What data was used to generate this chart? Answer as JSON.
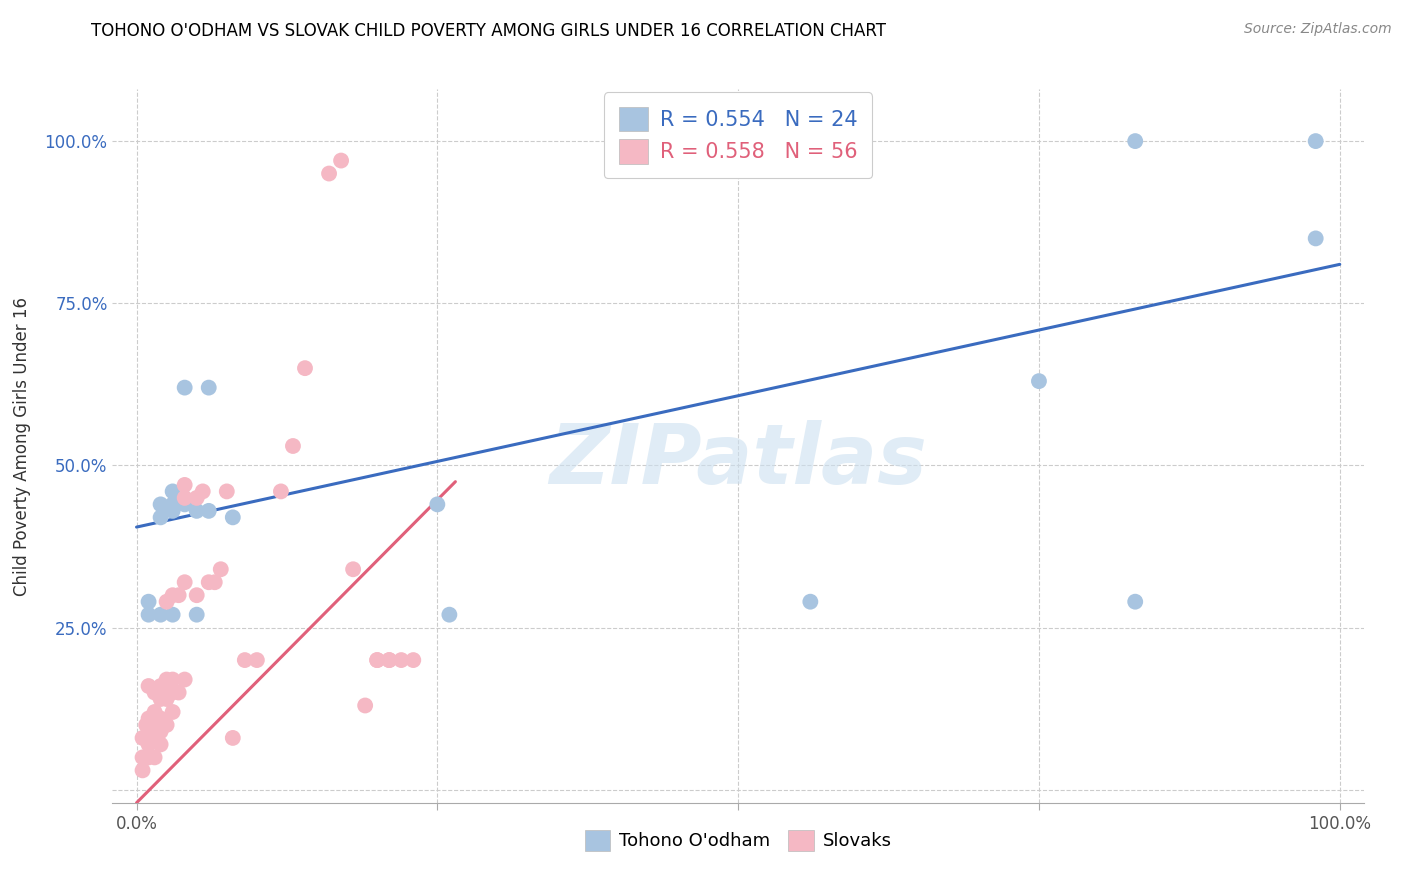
{
  "title": "TOHONO O'ODHAM VS SLOVAK CHILD POVERTY AMONG GIRLS UNDER 16 CORRELATION CHART",
  "source": "Source: ZipAtlas.com",
  "ylabel": "Child Poverty Among Girls Under 16",
  "xlim": [
    -0.02,
    1.02
  ],
  "ylim": [
    -0.02,
    1.08
  ],
  "xticks": [
    0.0,
    1.0
  ],
  "yticks": [
    0.25,
    0.5,
    0.75,
    1.0
  ],
  "xticklabels": [
    "0.0%",
    "100.0%"
  ],
  "yticklabels": [
    "25.0%",
    "50.0%",
    "75.0%",
    "100.0%"
  ],
  "blue_R": 0.554,
  "blue_N": 24,
  "pink_R": 0.558,
  "pink_N": 56,
  "blue_color": "#a8c4e0",
  "pink_color": "#f5b8c4",
  "blue_line_color": "#3a6bbf",
  "pink_line_color": "#e0607a",
  "watermark": "ZIPatlas",
  "legend_blue_label": "Tohono O'odham",
  "legend_pink_label": "Slovaks",
  "blue_line_x0": 0.0,
  "blue_line_y0": 0.405,
  "blue_line_x1": 1.0,
  "blue_line_y1": 0.81,
  "pink_line_x0": 0.0,
  "pink_line_y0": -0.02,
  "pink_line_x1": 0.265,
  "pink_line_y1": 0.475,
  "blue_scatter_x": [
    0.01,
    0.01,
    0.02,
    0.02,
    0.02,
    0.03,
    0.03,
    0.03,
    0.03,
    0.04,
    0.04,
    0.05,
    0.05,
    0.06,
    0.06,
    0.08,
    0.25,
    0.26,
    0.56,
    0.75,
    0.83,
    0.83,
    0.98,
    0.98
  ],
  "blue_scatter_y": [
    0.27,
    0.29,
    0.42,
    0.44,
    0.27,
    0.44,
    0.46,
    0.43,
    0.27,
    0.44,
    0.62,
    0.43,
    0.27,
    0.43,
    0.62,
    0.42,
    0.44,
    0.27,
    0.29,
    0.63,
    0.29,
    1.0,
    0.85,
    1.0
  ],
  "pink_scatter_x": [
    0.005,
    0.005,
    0.005,
    0.008,
    0.01,
    0.01,
    0.01,
    0.01,
    0.01,
    0.015,
    0.015,
    0.015,
    0.015,
    0.015,
    0.02,
    0.02,
    0.02,
    0.02,
    0.02,
    0.025,
    0.025,
    0.025,
    0.025,
    0.03,
    0.03,
    0.03,
    0.03,
    0.035,
    0.035,
    0.04,
    0.04,
    0.04,
    0.04,
    0.05,
    0.05,
    0.055,
    0.06,
    0.065,
    0.07,
    0.075,
    0.08,
    0.09,
    0.1,
    0.12,
    0.13,
    0.14,
    0.16,
    0.17,
    0.18,
    0.19,
    0.2,
    0.2,
    0.21,
    0.21,
    0.22,
    0.23
  ],
  "pink_scatter_y": [
    0.03,
    0.05,
    0.08,
    0.1,
    0.05,
    0.07,
    0.08,
    0.11,
    0.16,
    0.05,
    0.08,
    0.1,
    0.12,
    0.15,
    0.07,
    0.09,
    0.11,
    0.14,
    0.16,
    0.1,
    0.14,
    0.17,
    0.29,
    0.12,
    0.15,
    0.17,
    0.3,
    0.15,
    0.3,
    0.17,
    0.32,
    0.45,
    0.47,
    0.3,
    0.45,
    0.46,
    0.32,
    0.32,
    0.34,
    0.46,
    0.08,
    0.2,
    0.2,
    0.46,
    0.53,
    0.65,
    0.95,
    0.97,
    0.34,
    0.13,
    0.2,
    0.2,
    0.2,
    0.2,
    0.2,
    0.2
  ]
}
